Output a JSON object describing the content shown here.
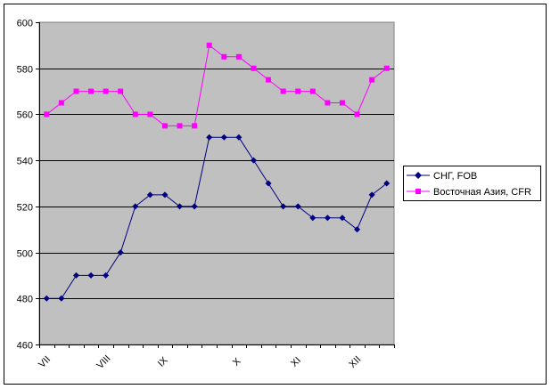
{
  "chart_data": {
    "type": "line",
    "title": "",
    "xlabel": "",
    "ylabel": "",
    "ylim": [
      460,
      600
    ],
    "yticks": [
      460,
      480,
      500,
      520,
      540,
      560,
      580,
      600
    ],
    "x_tick_labels": [
      {
        "label": "VII",
        "index": 0
      },
      {
        "label": "VIII",
        "index": 4
      },
      {
        "label": "IX",
        "index": 8
      },
      {
        "label": "X",
        "index": 13
      },
      {
        "label": "XI",
        "index": 17
      },
      {
        "label": "XII",
        "index": 21
      }
    ],
    "grid": "horizontal",
    "plot_background": "#c0c0c0",
    "legend_position": "right",
    "series": [
      {
        "name": "СНГ, FOB",
        "color": "#000080",
        "marker": "diamond",
        "values": [
          480,
          480,
          490,
          490,
          490,
          500,
          520,
          525,
          525,
          520,
          520,
          550,
          550,
          550,
          540,
          530,
          520,
          520,
          515,
          515,
          515,
          510,
          525,
          530
        ]
      },
      {
        "name": "Восточная Азия, CFR",
        "color": "#ff00ff",
        "marker": "square",
        "values": [
          560,
          565,
          570,
          570,
          570,
          570,
          560,
          560,
          555,
          555,
          555,
          590,
          585,
          585,
          580,
          575,
          570,
          570,
          570,
          565,
          565,
          560,
          575,
          580
        ]
      }
    ]
  }
}
